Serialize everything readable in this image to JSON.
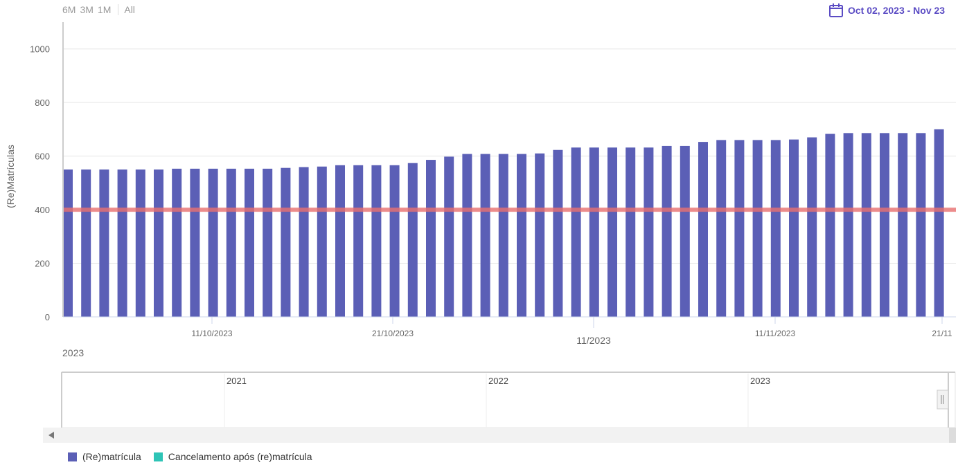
{
  "range_selector": {
    "buttons": [
      "6M",
      "3M",
      "1M"
    ],
    "all_label": "All"
  },
  "date_range": {
    "label": "Oct 02, 2023 - Nov 23"
  },
  "colors": {
    "bar": "#5b5fb6",
    "plot_line": "#e87070",
    "cancel": "#2ec4b6"
  },
  "chart_data": {
    "type": "bar",
    "ylabel": "(Re)Matrículas",
    "ylim": [
      0,
      1100
    ],
    "yticks": [
      0,
      200,
      400,
      600,
      800,
      1000
    ],
    "plot_line_value": 400,
    "x_tick_labels": [
      "11/10/2023",
      "21/10/2023",
      "11/2023",
      "11/11/2023",
      "21/11"
    ],
    "year_label": "2023",
    "series": [
      {
        "name": "(Re)matrícula",
        "values": [
          550,
          550,
          550,
          550,
          550,
          550,
          553,
          553,
          553,
          553,
          553,
          553,
          556,
          559,
          561,
          566,
          566,
          566,
          566,
          574,
          586,
          598,
          608,
          608,
          608,
          608,
          610,
          623,
          632,
          632,
          632,
          632,
          632,
          638,
          638,
          653,
          660,
          660,
          660,
          660,
          662,
          670,
          683,
          686,
          686,
          686,
          686,
          686,
          700
        ]
      },
      {
        "name": "Cancelamento após (re)matrícula",
        "values": []
      }
    ],
    "navigator": {
      "year_labels": [
        "2021",
        "2022",
        "2023"
      ]
    }
  }
}
